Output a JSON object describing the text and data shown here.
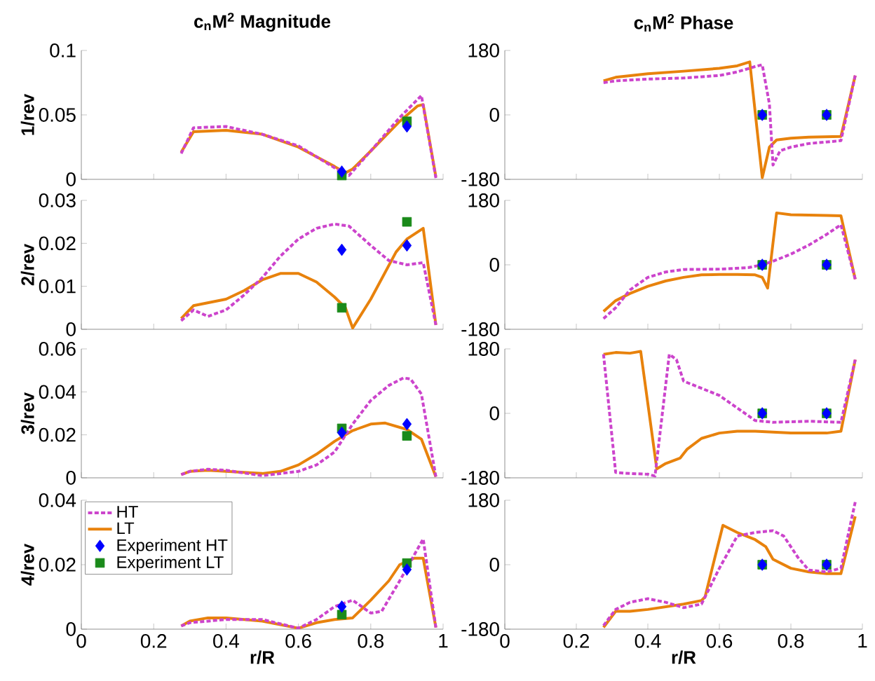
{
  "chart_data": [
    {
      "type": "line",
      "title": "c$_{n}$M$^{2}$ Magnitude",
      "ylabel": "1/rev",
      "xlim": [
        0,
        1
      ],
      "xticks": [
        0,
        0.2,
        0.4,
        0.6,
        0.8,
        1
      ],
      "ylim": [
        0,
        0.1
      ],
      "yticks": [
        0,
        0.05,
        0.1
      ],
      "tick_labels": "y",
      "series": [
        {
          "color": "#cc44cc",
          "line_style": "dashed",
          "marker": "none",
          "x": [
            0.276,
            0.31,
            0.4,
            0.5,
            0.6,
            0.7,
            0.74,
            0.8,
            0.88,
            0.94,
            0.98
          ],
          "values": [
            0.02,
            0.04,
            0.041,
            0.035,
            0.026,
            0.009,
            0.003,
            0.022,
            0.048,
            0.065,
            0.001
          ]
        },
        {
          "color": "#e8820c",
          "line_style": "solid",
          "marker": "none",
          "x": [
            0.276,
            0.31,
            0.4,
            0.5,
            0.6,
            0.7,
            0.73,
            0.75,
            0.8,
            0.88,
            0.93,
            0.945,
            0.98
          ],
          "values": [
            0.021,
            0.037,
            0.038,
            0.035,
            0.025,
            0.01,
            0.005,
            0.008,
            0.022,
            0.045,
            0.057,
            0.058,
            0.002
          ]
        },
        {
          "type": "scatter",
          "color": "#0000ff",
          "marker": "diamond",
          "x": [
            0.72,
            0.9
          ],
          "values": [
            0.006,
            0.041
          ]
        },
        {
          "type": "scatter",
          "color": "#1a8a1a",
          "marker": "square",
          "x": [
            0.72,
            0.9
          ],
          "values": [
            0.003,
            0.045
          ]
        }
      ]
    },
    {
      "type": "line",
      "title": "c$_{n}$M$^{2}$ Phase",
      "xlim": [
        0,
        1
      ],
      "xticks": [
        0,
        0.2,
        0.4,
        0.6,
        0.8,
        1
      ],
      "ylim": [
        -180,
        180
      ],
      "yticks": [
        -180,
        0,
        180
      ],
      "tick_labels": "y",
      "series": [
        {
          "color": "#cc44cc",
          "line_style": "dashed",
          "marker": "none",
          "x": [
            0.276,
            0.31,
            0.4,
            0.5,
            0.6,
            0.65,
            0.7,
            0.72,
            0.74,
            0.75,
            0.77,
            0.8,
            0.85,
            0.94,
            0.98
          ],
          "values": [
            90,
            95,
            100,
            103,
            110,
            120,
            135,
            140,
            30,
            -140,
            -100,
            -90,
            -80,
            -72,
            110
          ]
        },
        {
          "color": "#e8820c",
          "line_style": "solid",
          "marker": "none",
          "x": [
            0.276,
            0.31,
            0.4,
            0.5,
            0.6,
            0.65,
            0.685,
            0.72,
            0.74,
            0.76,
            0.8,
            0.85,
            0.94,
            0.98
          ],
          "values": [
            95,
            105,
            115,
            122,
            130,
            137,
            148,
            -175,
            -90,
            -70,
            -65,
            -62,
            -60,
            110
          ]
        },
        {
          "type": "scatter",
          "color": "#0000ff",
          "marker": "diamond",
          "x": [
            0.72,
            0.9
          ],
          "values": [
            0,
            0
          ]
        },
        {
          "type": "scatter",
          "color": "#1a8a1a",
          "marker": "square",
          "x": [
            0.72,
            0.9
          ],
          "values": [
            0,
            0
          ]
        }
      ]
    },
    {
      "type": "line",
      "ylabel": "2/rev",
      "xlim": [
        0,
        1
      ],
      "xticks": [
        0,
        0.2,
        0.4,
        0.6,
        0.8,
        1
      ],
      "ylim": [
        0,
        0.03
      ],
      "yticks": [
        0,
        0.01,
        0.02,
        0.03
      ],
      "tick_labels": "y",
      "series": [
        {
          "color": "#cc44cc",
          "line_style": "dashed",
          "marker": "none",
          "x": [
            0.276,
            0.31,
            0.35,
            0.4,
            0.45,
            0.5,
            0.55,
            0.6,
            0.65,
            0.7,
            0.74,
            0.8,
            0.85,
            0.9,
            0.945,
            0.98
          ],
          "values": [
            0.002,
            0.0045,
            0.003,
            0.0045,
            0.008,
            0.012,
            0.017,
            0.021,
            0.0235,
            0.0245,
            0.024,
            0.0195,
            0.016,
            0.015,
            0.0155,
            0.001
          ]
        },
        {
          "color": "#e8820c",
          "line_style": "solid",
          "marker": "none",
          "x": [
            0.276,
            0.31,
            0.4,
            0.45,
            0.5,
            0.55,
            0.6,
            0.65,
            0.7,
            0.73,
            0.75,
            0.8,
            0.87,
            0.9,
            0.945,
            0.98
          ],
          "values": [
            0.0025,
            0.0055,
            0.007,
            0.009,
            0.0115,
            0.013,
            0.013,
            0.011,
            0.0075,
            0.005,
            0.0003,
            0.007,
            0.018,
            0.021,
            0.0235,
            0.001
          ]
        },
        {
          "type": "scatter",
          "color": "#0000ff",
          "marker": "diamond",
          "x": [
            0.72,
            0.9
          ],
          "values": [
            0.0185,
            0.0195
          ]
        },
        {
          "type": "scatter",
          "color": "#1a8a1a",
          "marker": "square",
          "x": [
            0.72,
            0.9
          ],
          "values": [
            0.005,
            0.025
          ]
        }
      ]
    },
    {
      "type": "line",
      "xlim": [
        0,
        1
      ],
      "xticks": [
        0,
        0.2,
        0.4,
        0.6,
        0.8,
        1
      ],
      "ylim": [
        -180,
        180
      ],
      "yticks": [
        -180,
        0,
        180
      ],
      "tick_labels": "y",
      "series": [
        {
          "color": "#cc44cc",
          "line_style": "dashed",
          "marker": "none",
          "x": [
            0.276,
            0.31,
            0.35,
            0.4,
            0.45,
            0.5,
            0.6,
            0.68,
            0.72,
            0.75,
            0.8,
            0.85,
            0.9,
            0.94,
            0.98
          ],
          "values": [
            -150,
            -120,
            -70,
            -35,
            -20,
            -13,
            -12,
            -8,
            0,
            10,
            30,
            55,
            85,
            112,
            -40
          ]
        },
        {
          "color": "#e8820c",
          "line_style": "solid",
          "marker": "none",
          "x": [
            0.276,
            0.31,
            0.35,
            0.4,
            0.45,
            0.5,
            0.55,
            0.6,
            0.65,
            0.7,
            0.72,
            0.735,
            0.76,
            0.8,
            0.9,
            0.94,
            0.98
          ],
          "values": [
            -130,
            -100,
            -80,
            -60,
            -45,
            -35,
            -28,
            -27,
            -27,
            -28,
            -35,
            -65,
            145,
            140,
            138,
            137,
            -40
          ]
        },
        {
          "type": "scatter",
          "color": "#0000ff",
          "marker": "diamond",
          "x": [
            0.72,
            0.9
          ],
          "values": [
            0,
            0
          ]
        },
        {
          "type": "scatter",
          "color": "#1a8a1a",
          "marker": "square",
          "x": [
            0.72,
            0.9
          ],
          "values": [
            0,
            0
          ]
        }
      ]
    },
    {
      "type": "line",
      "ylabel": "3/rev",
      "xlim": [
        0,
        1
      ],
      "xticks": [
        0,
        0.2,
        0.4,
        0.6,
        0.8,
        1
      ],
      "ylim": [
        0,
        0.06
      ],
      "yticks": [
        0,
        0.02,
        0.04,
        0.06
      ],
      "tick_labels": "y",
      "series": [
        {
          "color": "#cc44cc",
          "line_style": "dashed",
          "marker": "none",
          "x": [
            0.276,
            0.3,
            0.35,
            0.4,
            0.5,
            0.6,
            0.65,
            0.7,
            0.75,
            0.8,
            0.85,
            0.89,
            0.91,
            0.94,
            0.98
          ],
          "values": [
            0.0015,
            0.003,
            0.004,
            0.0035,
            0.001,
            0.003,
            0.006,
            0.012,
            0.025,
            0.036,
            0.043,
            0.0465,
            0.046,
            0.039,
            0.0005
          ]
        },
        {
          "color": "#e8820c",
          "line_style": "solid",
          "marker": "none",
          "x": [
            0.276,
            0.3,
            0.35,
            0.4,
            0.5,
            0.55,
            0.6,
            0.65,
            0.7,
            0.75,
            0.8,
            0.84,
            0.9,
            0.94,
            0.98
          ],
          "values": [
            0.0015,
            0.003,
            0.0035,
            0.003,
            0.002,
            0.003,
            0.006,
            0.011,
            0.017,
            0.022,
            0.025,
            0.0255,
            0.0225,
            0.018,
            0.0005
          ]
        },
        {
          "type": "scatter",
          "color": "#0000ff",
          "marker": "diamond",
          "x": [
            0.72,
            0.9
          ],
          "values": [
            0.021,
            0.025
          ]
        },
        {
          "type": "scatter",
          "color": "#1a8a1a",
          "marker": "square",
          "x": [
            0.72,
            0.9
          ],
          "values": [
            0.023,
            0.0195
          ]
        }
      ]
    },
    {
      "type": "line",
      "xlim": [
        0,
        1
      ],
      "xticks": [
        0,
        0.2,
        0.4,
        0.6,
        0.8,
        1
      ],
      "ylim": [
        -180,
        180
      ],
      "yticks": [
        -180,
        0,
        180
      ],
      "tick_labels": "y",
      "series": [
        {
          "color": "#cc44cc",
          "line_style": "dashed",
          "marker": "none",
          "x": [
            0.276,
            0.31,
            0.35,
            0.4,
            0.42,
            0.46,
            0.48,
            0.5,
            0.55,
            0.6,
            0.65,
            0.7,
            0.75,
            0.85,
            0.94,
            0.98
          ],
          "values": [
            165,
            -165,
            -168,
            -170,
            -175,
            165,
            150,
            90,
            70,
            50,
            15,
            -20,
            -25,
            -22,
            -25,
            150
          ]
        },
        {
          "color": "#e8820c",
          "line_style": "solid",
          "marker": "none",
          "x": [
            0.276,
            0.31,
            0.35,
            0.38,
            0.425,
            0.45,
            0.49,
            0.51,
            0.55,
            0.6,
            0.65,
            0.7,
            0.8,
            0.9,
            0.94,
            0.98
          ],
          "values": [
            165,
            170,
            168,
            173,
            -155,
            -140,
            -125,
            -100,
            -70,
            -55,
            -50,
            -50,
            -55,
            -55,
            -50,
            150
          ]
        },
        {
          "type": "scatter",
          "color": "#0000ff",
          "marker": "diamond",
          "x": [
            0.72,
            0.9
          ],
          "values": [
            0,
            0
          ]
        },
        {
          "type": "scatter",
          "color": "#1a8a1a",
          "marker": "square",
          "x": [
            0.72,
            0.9
          ],
          "values": [
            0,
            0
          ]
        }
      ]
    },
    {
      "type": "line",
      "ylabel": "4/rev",
      "xlabel": "r/R",
      "xlim": [
        0,
        1
      ],
      "xticks": [
        0,
        0.2,
        0.4,
        0.6,
        0.8,
        1
      ],
      "ylim": [
        0,
        0.04
      ],
      "yticks": [
        0,
        0.02,
        0.04
      ],
      "legend": "top left",
      "series": [
        {
          "name": "HT",
          "color": "#cc44cc",
          "line_style": "dashed",
          "marker": "none",
          "x": [
            0.276,
            0.3,
            0.4,
            0.5,
            0.6,
            0.65,
            0.7,
            0.75,
            0.8,
            0.83,
            0.88,
            0.92,
            0.945,
            0.98
          ],
          "values": [
            0.001,
            0.002,
            0.003,
            0.003,
            0.0003,
            0.003,
            0.007,
            0.009,
            0.005,
            0.0055,
            0.015,
            0.023,
            0.028,
            0.0005
          ]
        },
        {
          "name": "LT",
          "color": "#e8820c",
          "line_style": "solid",
          "marker": "none",
          "x": [
            0.276,
            0.3,
            0.35,
            0.4,
            0.5,
            0.6,
            0.65,
            0.7,
            0.75,
            0.8,
            0.85,
            0.88,
            0.92,
            0.945,
            0.98
          ],
          "values": [
            0.001,
            0.0025,
            0.0035,
            0.0035,
            0.0025,
            0.0003,
            0.002,
            0.003,
            0.0035,
            0.009,
            0.015,
            0.02,
            0.022,
            0.022,
            0.0005
          ]
        },
        {
          "name": "Experiment HT",
          "type": "scatter",
          "color": "#0000ff",
          "marker": "diamond",
          "x": [
            0.72,
            0.9
          ],
          "values": [
            0.007,
            0.0185
          ]
        },
        {
          "name": "Experiment LT",
          "type": "scatter",
          "color": "#1a8a1a",
          "marker": "square",
          "x": [
            0.72,
            0.9
          ],
          "values": [
            0.0045,
            0.0205
          ]
        }
      ]
    },
    {
      "type": "line",
      "xlabel": "r/R",
      "xlim": [
        0,
        1
      ],
      "xticks": [
        0,
        0.2,
        0.4,
        0.6,
        0.8,
        1
      ],
      "ylim": [
        -180,
        180
      ],
      "yticks": [
        -180,
        0,
        180
      ],
      "series": [
        {
          "color": "#cc44cc",
          "line_style": "dashed",
          "marker": "none",
          "x": [
            0.276,
            0.31,
            0.35,
            0.4,
            0.45,
            0.5,
            0.55,
            0.6,
            0.65,
            0.7,
            0.75,
            0.78,
            0.82,
            0.85,
            0.9,
            0.94,
            0.98
          ],
          "values": [
            -170,
            -125,
            -105,
            -95,
            -105,
            -120,
            -110,
            -10,
            80,
            90,
            95,
            80,
            20,
            -15,
            -20,
            -10,
            175
          ]
        },
        {
          "color": "#e8820c",
          "line_style": "solid",
          "marker": "none",
          "x": [
            0.276,
            0.31,
            0.35,
            0.4,
            0.5,
            0.55,
            0.56,
            0.61,
            0.65,
            0.7,
            0.73,
            0.75,
            0.8,
            0.85,
            0.9,
            0.94,
            0.98
          ],
          "values": [
            -175,
            -130,
            -130,
            -125,
            -110,
            -100,
            -90,
            110,
            90,
            70,
            50,
            15,
            -10,
            -20,
            -25,
            -25,
            135
          ]
        },
        {
          "type": "scatter",
          "color": "#0000ff",
          "marker": "diamond",
          "x": [
            0.72,
            0.9
          ],
          "values": [
            0,
            0
          ]
        },
        {
          "type": "scatter",
          "color": "#1a8a1a",
          "marker": "square",
          "x": [
            0.72,
            0.9
          ],
          "values": [
            0,
            0
          ]
        }
      ]
    }
  ]
}
